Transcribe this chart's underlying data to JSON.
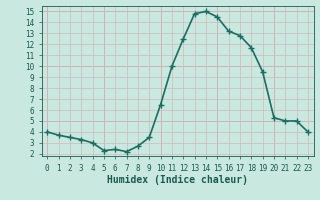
{
  "x": [
    0,
    1,
    2,
    3,
    4,
    5,
    6,
    7,
    8,
    9,
    10,
    11,
    12,
    13,
    14,
    15,
    16,
    17,
    18,
    19,
    20,
    21,
    22,
    23
  ],
  "y": [
    4.0,
    3.7,
    3.5,
    3.3,
    3.0,
    2.3,
    2.4,
    2.2,
    2.7,
    3.5,
    6.5,
    10.0,
    12.5,
    14.8,
    15.0,
    14.5,
    13.2,
    12.8,
    11.7,
    9.5,
    5.3,
    5.0,
    5.0,
    4.0
  ],
  "line_color": "#1a6e62",
  "marker": "+",
  "markersize": 4,
  "linewidth": 1.2,
  "xlabel": "Humidex (Indice chaleur)",
  "background_color": "#c8e8e0",
  "grid_color_minor": "#d4b8b8",
  "grid_color_major": "#c8a0a0",
  "xlim": [
    -0.5,
    23.5
  ],
  "ylim": [
    1.8,
    15.5
  ],
  "yticks": [
    2,
    3,
    4,
    5,
    6,
    7,
    8,
    9,
    10,
    11,
    12,
    13,
    14,
    15
  ],
  "xticks": [
    0,
    1,
    2,
    3,
    4,
    5,
    6,
    7,
    8,
    9,
    10,
    11,
    12,
    13,
    14,
    15,
    16,
    17,
    18,
    19,
    20,
    21,
    22,
    23
  ],
  "tick_color": "#1a5a50",
  "label_color": "#1a5a50",
  "tick_fontsize": 5.5,
  "xlabel_fontsize": 7.0
}
